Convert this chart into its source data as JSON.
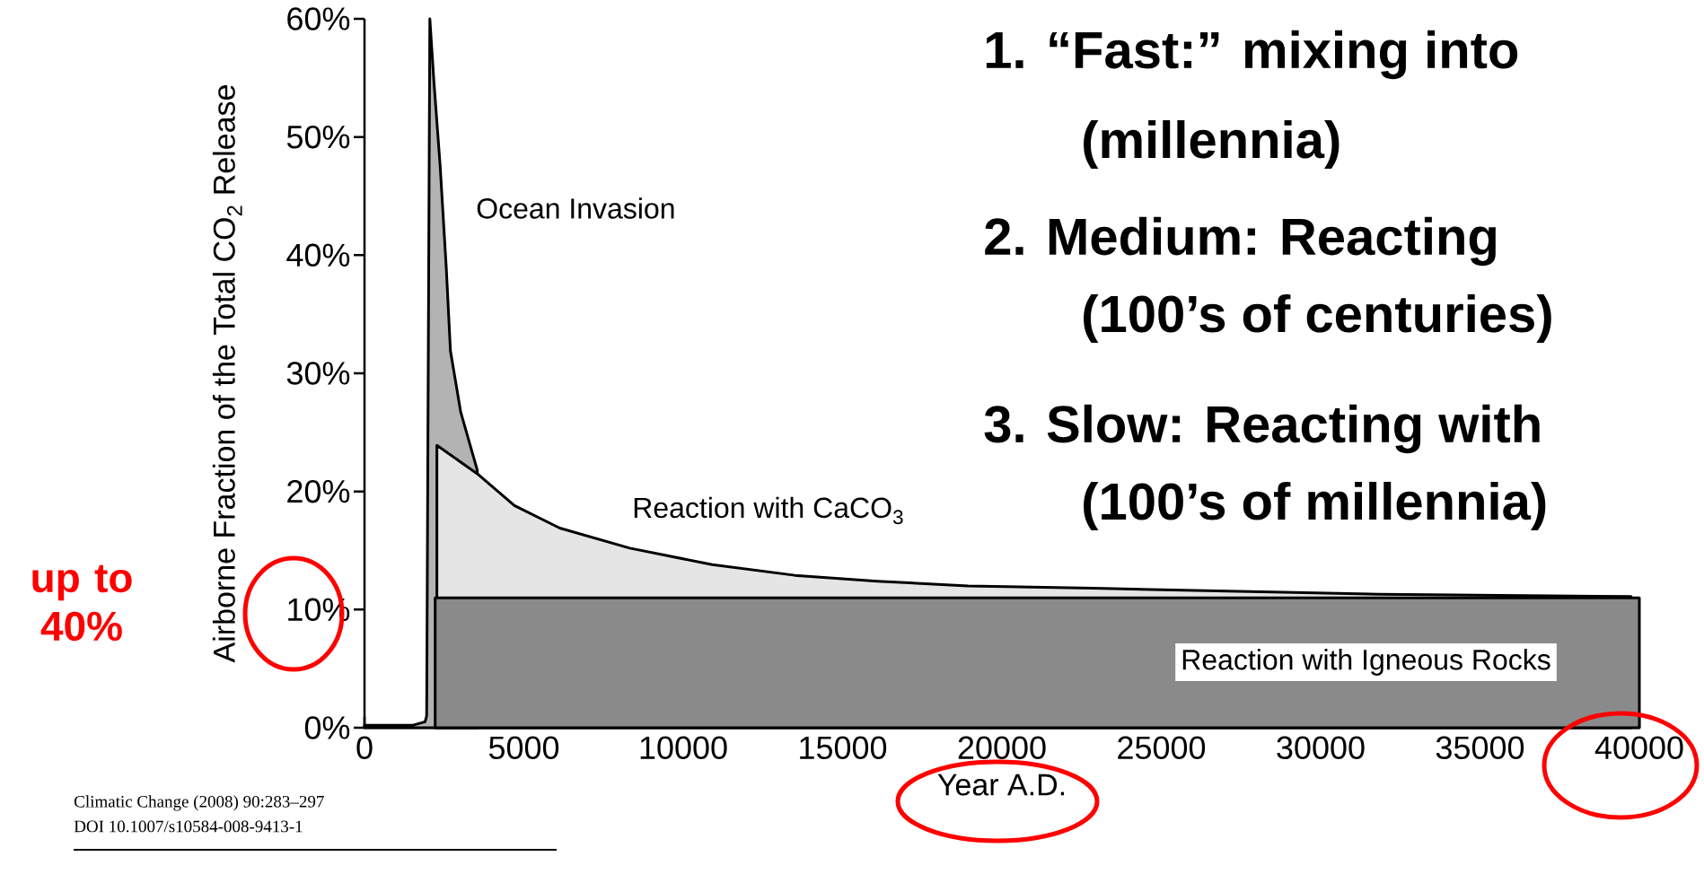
{
  "chart_data": {
    "type": "area",
    "xlabel": "Year A.D.",
    "ylabel": "Airborne Fraction of the Total CO$_{2}$ Release",
    "xlim": [
      0,
      40000
    ],
    "ylim": [
      0,
      60
    ],
    "xticks": [
      0,
      5000,
      10000,
      15000,
      20000,
      25000,
      30000,
      35000,
      40000
    ],
    "yticks": [
      {
        "value": 0,
        "label": "0%"
      },
      {
        "value": 10,
        "label": "10%"
      },
      {
        "value": 20,
        "label": "20%"
      },
      {
        "value": 30,
        "label": "30%"
      },
      {
        "value": 40,
        "label": "40%"
      },
      {
        "value": 50,
        "label": "50%"
      },
      {
        "value": 60,
        "label": "60%"
      }
    ],
    "series": [
      {
        "color": "#b3b3b3",
        "x": [
          0,
          1500,
          1900,
          1950,
          2050,
          2180,
          2372,
          2566,
          2696,
          3020,
          3538
        ],
        "values": [
          0.2,
          0.2,
          0.5,
          1,
          60,
          54.6,
          47.6,
          38.9,
          31.9,
          26.7,
          21.8
        ]
      },
      {
        "color": "#e5e5e5",
        "x": [
          2271,
          3538,
          4702,
          6127,
          8325,
          10913,
          13500,
          16090,
          18936,
          22880,
          31850,
          39740
        ],
        "values": [
          23.9,
          21.5,
          18.8,
          16.9,
          15.2,
          13.8,
          12.9,
          12.4,
          12.0,
          11.8,
          11.3,
          11.1
        ]
      },
      {
        "color": "#8a8a8a",
        "x": [
          2217,
          40000
        ],
        "values": [
          11,
          11
        ]
      }
    ],
    "annotations": [
      "Ocean Invasion",
      "Reaction with CaCO$_{3}$",
      "Reaction with Igneous Rocks",
      "1.  “Fast:” mixing into",
      "(millennia)",
      "2.  Medium: Reacting",
      "(100’s of centuries)",
      "3.  Slow: Reacting with",
      "(100’s of millennia)",
      "up to 40%",
      "Climatic Change (2008) 90:283–297",
      "DOI 10.1007/s10584-008-9413-1"
    ]
  }
}
